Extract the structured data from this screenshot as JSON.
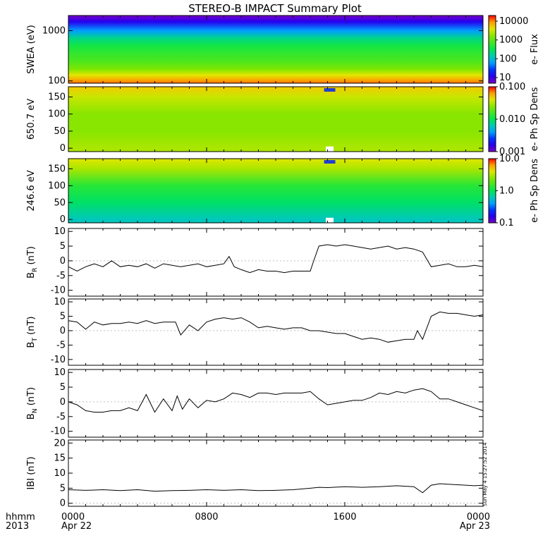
{
  "title": "STEREO-B IMPACT Summary Plot",
  "time_axis": {
    "row1_label": "hhmm",
    "row2_label": "2013",
    "ticks": [
      {
        "hhmm": "0000",
        "date": "Apr 22",
        "hours": 0
      },
      {
        "hhmm": "0800",
        "date": "",
        "hours": 8
      },
      {
        "hhmm": "1600",
        "date": "",
        "hours": 16
      },
      {
        "hhmm": "0000",
        "date": "Apr 23",
        "hours": 24
      }
    ]
  },
  "stamp": "Sun May  4 15:27:52 2014",
  "chart_data": [
    {
      "type": "heatmap",
      "ylabel": "SWEA (eV)",
      "yscale": "log",
      "ylim": [
        90,
        2000
      ],
      "yticks": [
        "1000",
        "100"
      ],
      "ytick_values": [
        1000,
        100
      ],
      "colorbar_label": "e- Flux",
      "colorbar_scale": "log",
      "colorbar_range": [
        5,
        20000
      ],
      "colorbar_ticks": [
        "10000",
        "1000",
        "100",
        "10"
      ],
      "colorbar_tick_values": [
        10000,
        1000,
        100,
        10
      ],
      "energy_profile": [
        {
          "eV": 2000,
          "flux": 5
        },
        {
          "eV": 1500,
          "flux": 12
        },
        {
          "eV": 1000,
          "flux": 60
        },
        {
          "eV": 700,
          "flux": 200
        },
        {
          "eV": 500,
          "flux": 400
        },
        {
          "eV": 350,
          "flux": 600
        },
        {
          "eV": 250,
          "flux": 800
        },
        {
          "eV": 170,
          "flux": 1500
        },
        {
          "eV": 130,
          "flux": 4000
        },
        {
          "eV": 100,
          "flux": 9000
        },
        {
          "eV": 90,
          "flux": 12000
        }
      ]
    },
    {
      "type": "heatmap",
      "ylabel": "650.7 eV",
      "yscale": "linear",
      "ylim": [
        -10,
        180
      ],
      "yticks": [
        "150",
        "100",
        "50",
        "0"
      ],
      "ytick_values": [
        150,
        100,
        50,
        0
      ],
      "colorbar_label": "e- Ph Sp Dens",
      "colorbar_scale": "log",
      "colorbar_range": [
        0.001,
        0.1
      ],
      "colorbar_ticks": [
        "0.100",
        "0.010",
        "0.001"
      ],
      "colorbar_tick_values": [
        0.1,
        0.01,
        0.001
      ],
      "pitch_angle_profile": [
        {
          "deg": 180,
          "value": 0.05
        },
        {
          "deg": 150,
          "value": 0.035
        },
        {
          "deg": 100,
          "value": 0.025
        },
        {
          "deg": 50,
          "value": 0.025
        },
        {
          "deg": 0,
          "value": 0.03
        }
      ]
    },
    {
      "type": "heatmap",
      "ylabel": "246.6 eV",
      "yscale": "linear",
      "ylim": [
        -10,
        180
      ],
      "yticks": [
        "150",
        "100",
        "50",
        "0"
      ],
      "ytick_values": [
        150,
        100,
        50,
        0
      ],
      "colorbar_label": "e- Ph Sp Dens",
      "colorbar_scale": "log",
      "colorbar_range": [
        0.1,
        10
      ],
      "colorbar_ticks": [
        "10.0",
        "1.0",
        "0.1"
      ],
      "colorbar_tick_values": [
        10,
        1,
        0.1
      ],
      "pitch_angle_profile": [
        {
          "deg": 180,
          "value": 4.0
        },
        {
          "deg": 150,
          "value": 3.0
        },
        {
          "deg": 100,
          "value": 1.3
        },
        {
          "deg": 50,
          "value": 0.9
        },
        {
          "deg": 0,
          "value": 0.6
        }
      ]
    },
    {
      "type": "line",
      "ylabel": "B_R (nT)",
      "ylabel_main": "B",
      "ylabel_sub": "R",
      "ylabel_unit": " (nT)",
      "ylim": [
        -12,
        11
      ],
      "yticks": [
        "10",
        "5",
        "0",
        "-5",
        "-10"
      ],
      "ytick_values": [
        10,
        5,
        0,
        -5,
        -10
      ],
      "x_hours": [
        0,
        0.5,
        1,
        1.5,
        2,
        2.5,
        3,
        3.5,
        4,
        4.5,
        5,
        5.5,
        6,
        6.5,
        7,
        7.5,
        8,
        8.5,
        9,
        9.3,
        9.6,
        10,
        10.5,
        11,
        11.5,
        12,
        12.5,
        13,
        13.5,
        14,
        14.2,
        14.5,
        15,
        15.5,
        16,
        16.5,
        17,
        17.5,
        18,
        18.5,
        19,
        19.5,
        20,
        20.5,
        21,
        21.5,
        22,
        22.5,
        23,
        23.5,
        24
      ],
      "y": [
        -2,
        -3.5,
        -2,
        -1,
        -2,
        0,
        -2,
        -1.5,
        -2,
        -1,
        -2.5,
        -1,
        -1.5,
        -2,
        -1.5,
        -1,
        -2,
        -1.5,
        -1,
        1.5,
        -2,
        -3,
        -4,
        -3,
        -3.5,
        -3.5,
        -4,
        -3.5,
        -3.5,
        -3.5,
        0,
        5,
        5.5,
        5,
        5.5,
        5,
        4.5,
        4,
        4.5,
        5,
        4,
        4.5,
        4,
        3,
        -2,
        -1.5,
        -1,
        -2,
        -2,
        -1.5,
        -2
      ]
    },
    {
      "type": "line",
      "ylabel": "B_T (nT)",
      "ylabel_main": "B",
      "ylabel_sub": "T",
      "ylabel_unit": " (nT)",
      "ylim": [
        -12,
        11
      ],
      "yticks": [
        "10",
        "5",
        "0",
        "-5",
        "-10"
      ],
      "ytick_values": [
        10,
        5,
        0,
        -5,
        -10
      ],
      "x_hours": [
        0,
        0.5,
        1,
        1.5,
        2,
        2.5,
        3,
        3.5,
        4,
        4.5,
        5,
        5.5,
        6,
        6.2,
        6.5,
        7,
        7.5,
        8,
        8.5,
        9,
        9.5,
        10,
        10.5,
        11,
        11.5,
        12,
        12.5,
        13,
        13.5,
        14,
        14.5,
        15,
        15.5,
        16,
        16.5,
        17,
        17.5,
        18,
        18.5,
        19,
        19.5,
        20,
        20.2,
        20.5,
        21,
        21.5,
        22,
        22.5,
        23,
        23.5,
        24
      ],
      "y": [
        3.5,
        3,
        0.5,
        3,
        2,
        2.5,
        2.5,
        3,
        2.5,
        3.5,
        2.5,
        3,
        3,
        3,
        -1.5,
        2,
        0,
        3,
        4,
        4.5,
        4,
        4.5,
        3,
        1,
        1.5,
        1,
        0.5,
        1,
        1,
        0,
        0,
        -0.5,
        -1,
        -1,
        -2,
        -3,
        -2.5,
        -3,
        -4,
        -3.5,
        -3,
        -3,
        0,
        -3,
        5,
        6.5,
        6,
        6,
        5.5,
        5,
        5.5
      ]
    },
    {
      "type": "line",
      "ylabel": "B_N (nT)",
      "ylabel_main": "B",
      "ylabel_sub": "N",
      "ylabel_unit": " (nT)",
      "ylim": [
        -12,
        11
      ],
      "yticks": [
        "10",
        "5",
        "0",
        "-5",
        "-10"
      ],
      "ytick_values": [
        10,
        5,
        0,
        -5,
        -10
      ],
      "x_hours": [
        0,
        0.5,
        1,
        1.5,
        2,
        2.5,
        3,
        3.5,
        4,
        4.5,
        5,
        5.5,
        6,
        6.3,
        6.6,
        7,
        7.5,
        8,
        8.5,
        9,
        9.5,
        10,
        10.5,
        11,
        11.5,
        12,
        12.5,
        13,
        13.5,
        14,
        14.5,
        15,
        15.5,
        16,
        16.5,
        17,
        17.5,
        18,
        18.5,
        19,
        19.5,
        20,
        20.5,
        21,
        21.5,
        22,
        22.5,
        23,
        23.5,
        24
      ],
      "y": [
        0,
        -1,
        -3,
        -3.5,
        -3.5,
        -3,
        -3,
        -2,
        -3,
        2.5,
        -3.5,
        1,
        -3,
        2,
        -2.5,
        1,
        -2,
        0.5,
        0,
        1,
        3,
        2.5,
        1.5,
        3,
        3,
        2.5,
        3,
        3,
        3,
        3.5,
        1,
        -1,
        -0.5,
        0,
        0.5,
        0.5,
        1.5,
        3,
        2.5,
        3.5,
        3,
        4,
        4.5,
        3.5,
        1,
        1,
        0,
        -1,
        -2,
        -3
      ]
    },
    {
      "type": "line",
      "ylabel": "|B| (nT)",
      "ylabel_main": "IBI (nT)",
      "ylim": [
        -1,
        21
      ],
      "yticks": [
        "20",
        "15",
        "10",
        "5",
        "0"
      ],
      "ytick_values": [
        20,
        15,
        10,
        5,
        0
      ],
      "x_hours": [
        0,
        1,
        2,
        3,
        4,
        5,
        6,
        7,
        8,
        9,
        10,
        11,
        12,
        13,
        14,
        14.5,
        15,
        16,
        17,
        18,
        19,
        20,
        20.5,
        21,
        21.5,
        22,
        23,
        23.5,
        24
      ],
      "y": [
        4.5,
        4.3,
        4.5,
        4.2,
        4.5,
        4,
        4.2,
        4.3,
        4.5,
        4.3,
        4.5,
        4.2,
        4.3,
        4.5,
        5,
        5.3,
        5.2,
        5.5,
        5.3,
        5.5,
        5.8,
        5.5,
        3.5,
        6,
        6.5,
        6.3,
        6,
        5.8,
        6
      ]
    }
  ]
}
